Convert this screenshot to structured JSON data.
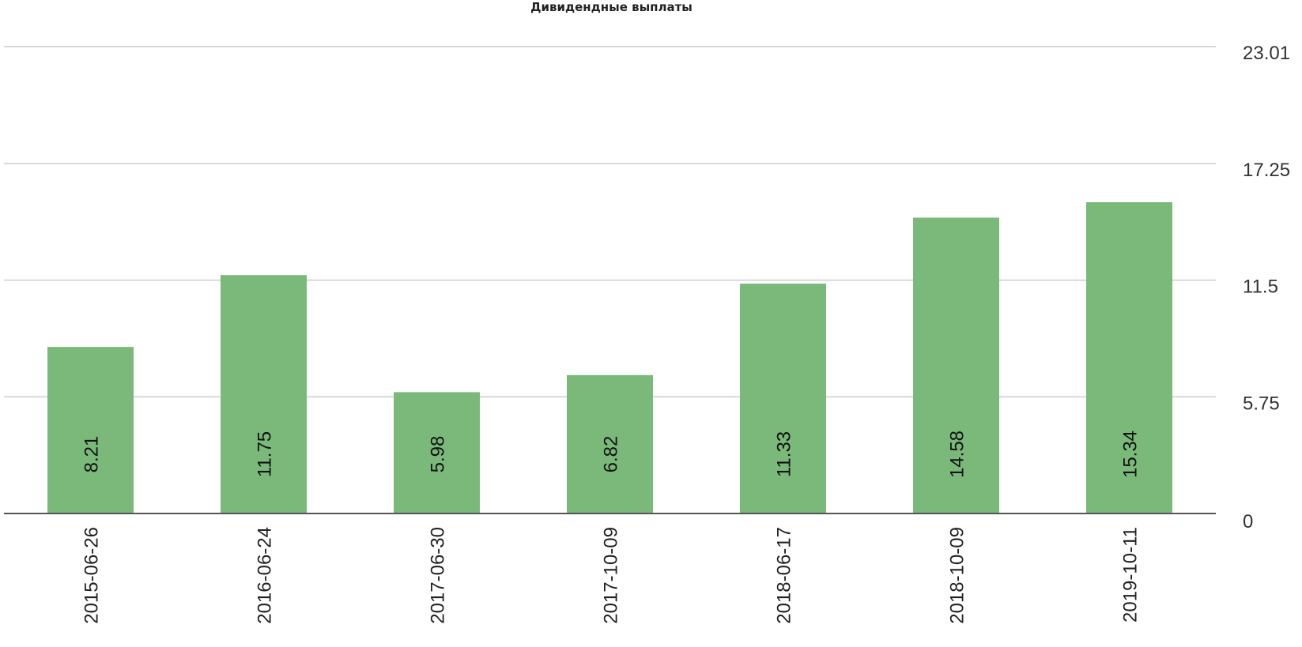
{
  "chart_data": {
    "type": "bar",
    "title": "Дивидендные выплаты",
    "xlabel": "",
    "ylabel": "",
    "categories": [
      "2015-06-26",
      "2016-06-24",
      "2017-06-30",
      "2017-10-09",
      "2018-06-17",
      "2018-10-09",
      "2019-10-11"
    ],
    "values": [
      8.21,
      11.75,
      5.98,
      6.82,
      11.33,
      14.58,
      15.34
    ],
    "value_labels": [
      "8.21",
      "11.75",
      "5.98",
      "6.82",
      "11.33",
      "14.58",
      "15.34"
    ],
    "ylim": [
      0,
      23.01
    ],
    "yticks": [
      0,
      5.75,
      11.5,
      17.25,
      23.01
    ],
    "ytick_labels": [
      "0",
      "5.75",
      "11.5",
      "17.25",
      "23.01"
    ],
    "y_axis_position": "right",
    "grid": true,
    "colors": {
      "bar": "#7ab97a",
      "grid": "#cccccc",
      "baseline": "#555555"
    }
  }
}
